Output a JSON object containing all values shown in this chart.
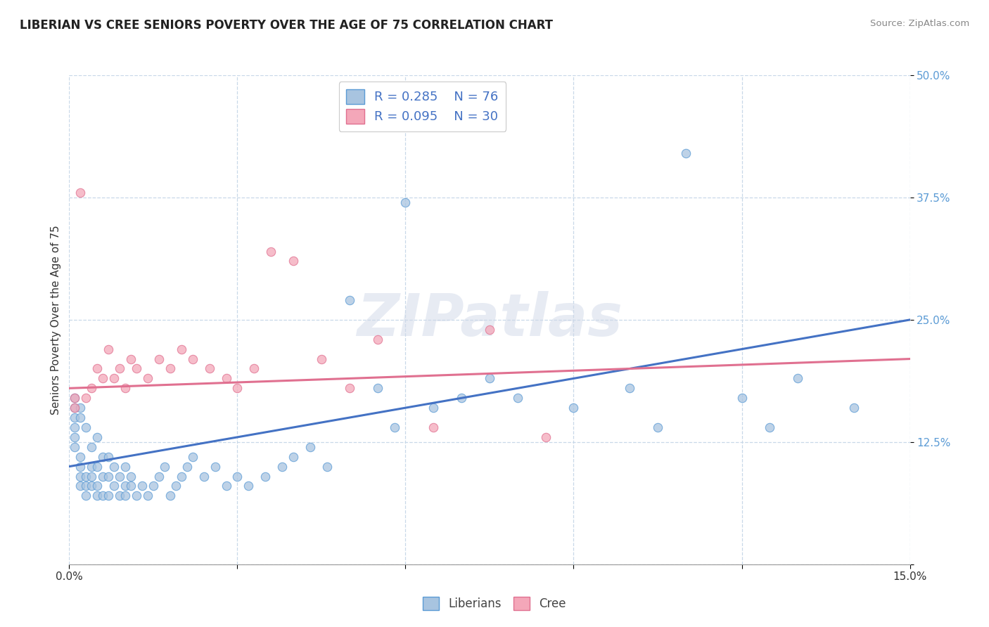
{
  "title": "LIBERIAN VS CREE SENIORS POVERTY OVER THE AGE OF 75 CORRELATION CHART",
  "source": "Source: ZipAtlas.com",
  "ylabel": "Seniors Poverty Over the Age of 75",
  "xlim": [
    0.0,
    0.15
  ],
  "ylim": [
    0.0,
    0.5
  ],
  "xticks": [
    0.0,
    0.03,
    0.06,
    0.09,
    0.12,
    0.15
  ],
  "xtick_labels": [
    "0.0%",
    "",
    "",
    "",
    "",
    "15.0%"
  ],
  "yticks": [
    0.0,
    0.125,
    0.25,
    0.375,
    0.5
  ],
  "ytick_labels": [
    "",
    "12.5%",
    "25.0%",
    "37.5%",
    "50.0%"
  ],
  "blue_R": 0.285,
  "blue_N": 76,
  "pink_R": 0.095,
  "pink_N": 30,
  "blue_fill": "#a8c4e0",
  "pink_fill": "#f4a7b9",
  "blue_edge": "#5b9bd5",
  "pink_edge": "#e07090",
  "blue_line": "#4472c4",
  "pink_line": "#e07090",
  "watermark_text": "ZIPatlas",
  "background_color": "#ffffff",
  "grid_color": "#c8d8e8",
  "liberians_x": [
    0.001,
    0.001,
    0.001,
    0.001,
    0.001,
    0.001,
    0.002,
    0.002,
    0.002,
    0.002,
    0.002,
    0.002,
    0.003,
    0.003,
    0.003,
    0.003,
    0.004,
    0.004,
    0.004,
    0.004,
    0.005,
    0.005,
    0.005,
    0.005,
    0.006,
    0.006,
    0.006,
    0.007,
    0.007,
    0.007,
    0.008,
    0.008,
    0.009,
    0.009,
    0.01,
    0.01,
    0.01,
    0.011,
    0.011,
    0.012,
    0.013,
    0.014,
    0.015,
    0.016,
    0.017,
    0.018,
    0.019,
    0.02,
    0.021,
    0.022,
    0.024,
    0.026,
    0.028,
    0.03,
    0.032,
    0.035,
    0.038,
    0.04,
    0.043,
    0.046,
    0.05,
    0.055,
    0.058,
    0.06,
    0.065,
    0.07,
    0.075,
    0.08,
    0.09,
    0.1,
    0.105,
    0.11,
    0.12,
    0.125,
    0.13,
    0.14
  ],
  "liberians_y": [
    0.14,
    0.15,
    0.16,
    0.13,
    0.12,
    0.17,
    0.08,
    0.09,
    0.1,
    0.11,
    0.15,
    0.16,
    0.07,
    0.08,
    0.09,
    0.14,
    0.08,
    0.09,
    0.1,
    0.12,
    0.07,
    0.08,
    0.1,
    0.13,
    0.07,
    0.09,
    0.11,
    0.07,
    0.09,
    0.11,
    0.08,
    0.1,
    0.07,
    0.09,
    0.07,
    0.08,
    0.1,
    0.08,
    0.09,
    0.07,
    0.08,
    0.07,
    0.08,
    0.09,
    0.1,
    0.07,
    0.08,
    0.09,
    0.1,
    0.11,
    0.09,
    0.1,
    0.08,
    0.09,
    0.08,
    0.09,
    0.1,
    0.11,
    0.12,
    0.1,
    0.27,
    0.18,
    0.14,
    0.37,
    0.16,
    0.17,
    0.19,
    0.17,
    0.16,
    0.18,
    0.14,
    0.42,
    0.17,
    0.14,
    0.19,
    0.16
  ],
  "cree_x": [
    0.001,
    0.001,
    0.002,
    0.003,
    0.004,
    0.005,
    0.006,
    0.007,
    0.008,
    0.009,
    0.01,
    0.011,
    0.012,
    0.014,
    0.016,
    0.018,
    0.02,
    0.022,
    0.025,
    0.028,
    0.03,
    0.033,
    0.036,
    0.04,
    0.045,
    0.05,
    0.055,
    0.065,
    0.075,
    0.085
  ],
  "cree_y": [
    0.16,
    0.17,
    0.38,
    0.17,
    0.18,
    0.2,
    0.19,
    0.22,
    0.19,
    0.2,
    0.18,
    0.21,
    0.2,
    0.19,
    0.21,
    0.2,
    0.22,
    0.21,
    0.2,
    0.19,
    0.18,
    0.2,
    0.32,
    0.31,
    0.21,
    0.18,
    0.23,
    0.14,
    0.24,
    0.13
  ]
}
